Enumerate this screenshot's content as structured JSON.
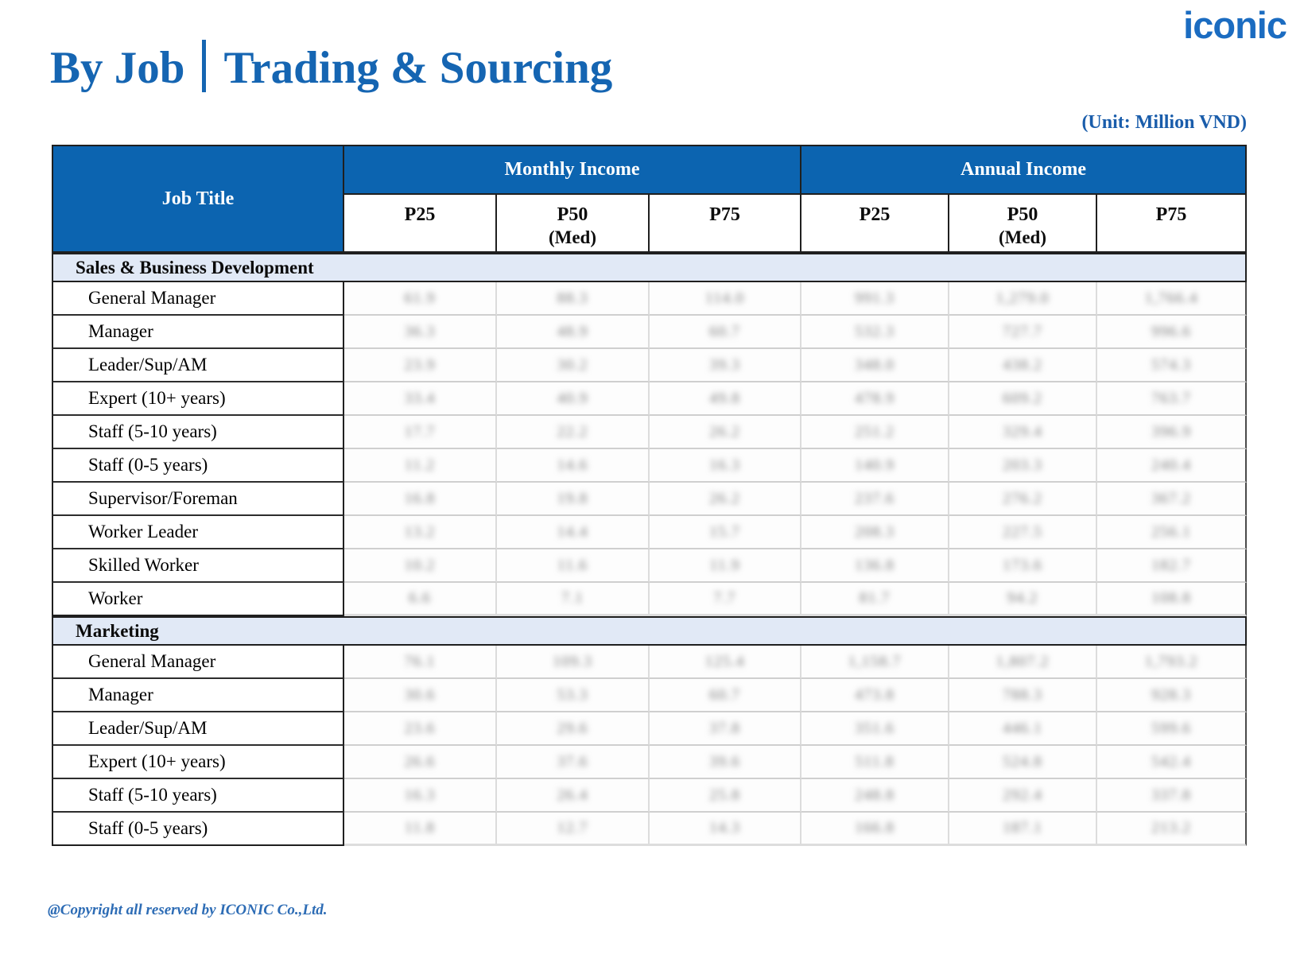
{
  "page": {
    "logo": "iconic",
    "title_left": "By Job",
    "title_right": "Trading & Sourcing",
    "unit_note": "(Unit: Million VND)",
    "footer": "@Copyright all reserved by ICONIC Co.,Ltd."
  },
  "colors": {
    "header_blue": "#0c64b0",
    "section_light_blue": "#e1e9f6",
    "title_blue": "#1565b2",
    "logo_blue": "#1b6cc1",
    "footer_blue": "#2d6cb5"
  },
  "table": {
    "corner_header": "Job Title",
    "group_headers": [
      "Monthly Income",
      "Annual Income"
    ],
    "sub_headers": [
      {
        "label": "P25",
        "note": ""
      },
      {
        "label": "P50",
        "note": "(Med)"
      },
      {
        "label": "P75",
        "note": ""
      },
      {
        "label": "P25",
        "note": ""
      },
      {
        "label": "P50",
        "note": "(Med)"
      },
      {
        "label": "P75",
        "note": ""
      }
    ],
    "values_blurred": true,
    "values_note": "All numeric data cells are blurred/redacted in the source image; strings below are visual placeholders matching the blur shapes.",
    "sections": [
      {
        "label": "Sales & Business Development",
        "rows": [
          {
            "job": "General Manager",
            "values": [
              "61.9",
              "88.3",
              "114.0",
              "991.3",
              "1,279.0",
              "1,766.4"
            ]
          },
          {
            "job": "Manager",
            "values": [
              "36.3",
              "48.9",
              "60.7",
              "532.3",
              "727.7",
              "996.6"
            ]
          },
          {
            "job": "Leader/Sup/AM",
            "values": [
              "23.9",
              "30.2",
              "39.3",
              "348.0",
              "438.2",
              "574.3"
            ]
          },
          {
            "job": "Expert (10+ years)",
            "values": [
              "33.4",
              "40.9",
              "49.8",
              "478.9",
              "609.2",
              "763.7"
            ]
          },
          {
            "job": "Staff (5-10 years)",
            "values": [
              "17.7",
              "22.2",
              "26.2",
              "251.2",
              "329.4",
              "396.9"
            ]
          },
          {
            "job": "Staff (0-5 years)",
            "values": [
              "11.2",
              "14.6",
              "16.3",
              "140.9",
              "203.3",
              "240.4"
            ]
          },
          {
            "job": "Supervisor/Foreman",
            "values": [
              "16.8",
              "19.8",
              "26.2",
              "237.6",
              "276.2",
              "367.2"
            ]
          },
          {
            "job": "Worker Leader",
            "values": [
              "13.2",
              "14.4",
              "15.7",
              "208.3",
              "227.5",
              "256.1"
            ]
          },
          {
            "job": "Skilled Worker",
            "values": [
              "10.2",
              "11.6",
              "11.9",
              "136.8",
              "173.6",
              "182.7"
            ]
          },
          {
            "job": "Worker",
            "values": [
              "6.6",
              "7.1",
              "7.7",
              "81.7",
              "94.2",
              "108.8"
            ]
          }
        ]
      },
      {
        "label": "Marketing",
        "rows": [
          {
            "job": "General Manager",
            "values": [
              "76.1",
              "109.3",
              "125.4",
              "1,158.7",
              "1,807.2",
              "1,793.2"
            ]
          },
          {
            "job": "Manager",
            "values": [
              "30.6",
              "53.3",
              "60.7",
              "473.8",
              "788.3",
              "928.3"
            ]
          },
          {
            "job": "Leader/Sup/AM",
            "values": [
              "23.6",
              "29.6",
              "37.8",
              "351.6",
              "446.1",
              "599.6"
            ]
          },
          {
            "job": "Expert (10+ years)",
            "values": [
              "26.6",
              "37.6",
              "39.6",
              "511.8",
              "524.8",
              "542.4"
            ]
          },
          {
            "job": "Staff (5-10 years)",
            "values": [
              "16.3",
              "26.4",
              "25.8",
              "248.8",
              "292.4",
              "337.8"
            ]
          },
          {
            "job": "Staff (0-5 years)",
            "values": [
              "11.8",
              "12.7",
              "14.3",
              "166.8",
              "187.1",
              "213.2"
            ]
          }
        ]
      }
    ]
  }
}
